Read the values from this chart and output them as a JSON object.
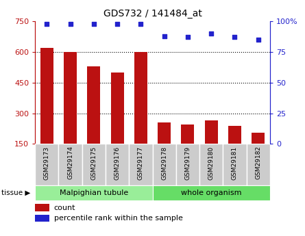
{
  "title": "GDS732 / 141484_at",
  "samples": [
    "GSM29173",
    "GSM29174",
    "GSM29175",
    "GSM29176",
    "GSM29177",
    "GSM29178",
    "GSM29179",
    "GSM29180",
    "GSM29181",
    "GSM29182"
  ],
  "counts": [
    620,
    600,
    530,
    500,
    600,
    255,
    245,
    265,
    240,
    205
  ],
  "percentiles": [
    98,
    98,
    98,
    98,
    98,
    88,
    87,
    90,
    87,
    85
  ],
  "tissue_labels": [
    "Malpighian tubule",
    "whole organism"
  ],
  "tissue_groups": [
    5,
    5
  ],
  "ylim_left": [
    150,
    750
  ],
  "ylim_right": [
    0,
    100
  ],
  "yticks_left": [
    150,
    300,
    450,
    600,
    750
  ],
  "yticks_right": [
    0,
    25,
    50,
    75,
    100
  ],
  "bar_color": "#BB1111",
  "dot_color": "#2222CC",
  "tissue_colors": [
    "#99EE99",
    "#66DD66"
  ],
  "bar_width": 0.55,
  "grid_color": "black",
  "bg_color": "#CCCCCC",
  "legend_count_label": "count",
  "legend_percentile_label": "percentile rank within the sample",
  "tissue_arrow_label": "tissue"
}
